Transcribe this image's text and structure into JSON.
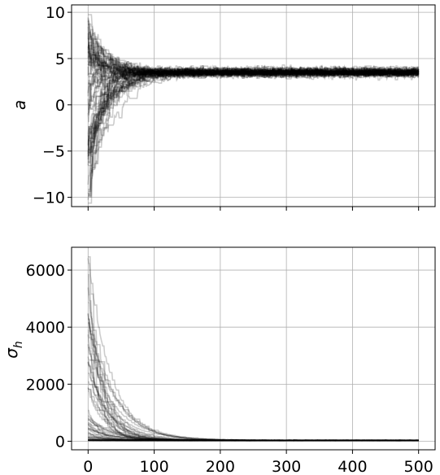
{
  "chart_data": [
    {
      "type": "line",
      "description": "MCMC walker traces for parameter a",
      "ylabel": "a",
      "xlim": [
        -25,
        525
      ],
      "ylim": [
        -11,
        10.8
      ],
      "xticks": [
        0,
        100,
        200,
        300,
        400,
        500
      ],
      "xtick_labels": [
        "",
        "",
        "",
        "",
        "",
        ""
      ],
      "yticks": [
        -10,
        -5,
        0,
        5,
        10
      ],
      "ytick_labels": [
        "−10",
        "−5",
        "0",
        "5",
        "10"
      ],
      "grid": true,
      "n_walkers": 64,
      "n_steps": 500,
      "initial_range": [
        -10,
        9.8
      ],
      "converged_value": 3.5,
      "converged_spread": 0.4,
      "burn_in_steps": 50,
      "line_color": "#000000",
      "line_alpha": 0.2
    },
    {
      "type": "line",
      "description": "MCMC walker traces for parameter sigma_h",
      "ylabel": "σ",
      "ylabel_subscript": "h",
      "xlim": [
        -25,
        525
      ],
      "ylim": [
        -300,
        6800
      ],
      "xticks": [
        0,
        100,
        200,
        300,
        400,
        500
      ],
      "xtick_labels": [
        "0",
        "100",
        "200",
        "300",
        "400",
        "500"
      ],
      "yticks": [
        0,
        2000,
        4000,
        6000
      ],
      "ytick_labels": [
        "0",
        "2000",
        "4000",
        "6000"
      ],
      "grid": true,
      "n_walkers": 64,
      "n_steps": 500,
      "max_initial": 6500,
      "converged_value": 30,
      "burn_in_steps": 60,
      "line_color": "#000000",
      "line_alpha": 0.2
    }
  ]
}
